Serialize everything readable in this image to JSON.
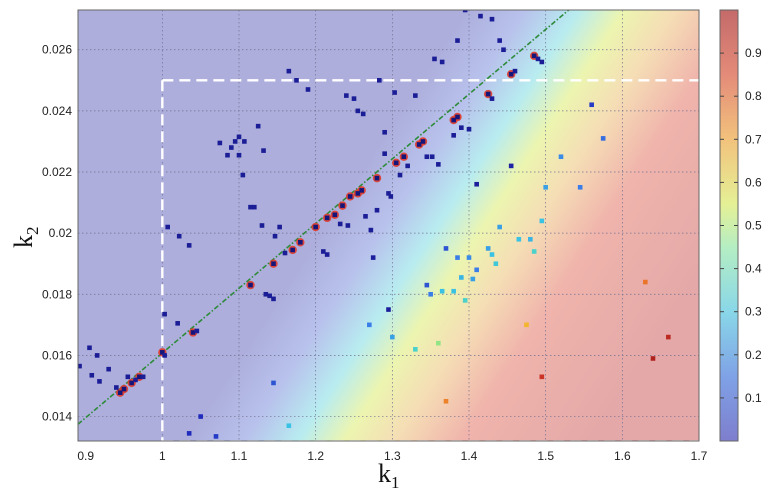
{
  "chart_data": {
    "type": "scatter",
    "title": "",
    "xlabel": "k",
    "xlabel_sub": "1",
    "ylabel": "k",
    "ylabel_sub": "2",
    "xlim": [
      0.89,
      1.7
    ],
    "ylim": [
      0.0132,
      0.0273
    ],
    "xticks": [
      "0.9",
      "1",
      "1.1",
      "1.2",
      "1.3",
      "1.4",
      "1.5",
      "1.6",
      "1.7"
    ],
    "yticks": [
      "0.014",
      "0.016",
      "0.018",
      "0.02",
      "0.022",
      "0.024",
      "0.026"
    ],
    "grid": true,
    "colorbar": {
      "range": [
        0,
        1
      ],
      "ticks": [
        "0.1",
        "0.2",
        "0.3",
        "0.4",
        "0.5",
        "0.6",
        "0.7",
        "0.8",
        "0.9"
      ]
    },
    "reference_lines": {
      "diagonal": {
        "from": [
          0.89,
          0.01375
        ],
        "to": [
          1.53,
          0.0273
        ]
      },
      "vertical_dashed_x": 1.0,
      "horizontal_dashed_y": 0.025
    },
    "on_line_points": [
      [
        0.945,
        0.01478
      ],
      [
        0.95,
        0.0149
      ],
      [
        0.96,
        0.0151
      ],
      [
        0.97,
        0.0153
      ],
      [
        1.0,
        0.0161
      ],
      [
        1.04,
        0.01675
      ],
      [
        1.115,
        0.0183
      ],
      [
        1.145,
        0.019
      ],
      [
        1.17,
        0.01945
      ],
      [
        1.18,
        0.0197
      ],
      [
        1.2,
        0.0202
      ],
      [
        1.215,
        0.0205
      ],
      [
        1.225,
        0.0206
      ],
      [
        1.235,
        0.0209
      ],
      [
        1.245,
        0.0212
      ],
      [
        1.255,
        0.0213
      ],
      [
        1.26,
        0.0214
      ],
      [
        1.28,
        0.0218
      ],
      [
        1.305,
        0.0223
      ],
      [
        1.315,
        0.0225
      ],
      [
        1.335,
        0.0229
      ],
      [
        1.34,
        0.023
      ],
      [
        1.38,
        0.0237
      ],
      [
        1.385,
        0.0238
      ],
      [
        1.425,
        0.02455
      ],
      [
        1.455,
        0.0252
      ],
      [
        1.485,
        0.0258
      ]
    ],
    "points": [
      {
        "x": 0.892,
        "y": 0.01565,
        "v": 0.02
      },
      {
        "x": 0.905,
        "y": 0.01625,
        "v": 0.02
      },
      {
        "x": 0.908,
        "y": 0.01535,
        "v": 0.02
      },
      {
        "x": 0.915,
        "y": 0.016,
        "v": 0.02
      },
      {
        "x": 0.918,
        "y": 0.01515,
        "v": 0.02
      },
      {
        "x": 0.93,
        "y": 0.01555,
        "v": 0.02
      },
      {
        "x": 0.94,
        "y": 0.01495,
        "v": 0.02
      },
      {
        "x": 0.955,
        "y": 0.0153,
        "v": 0.02
      },
      {
        "x": 0.965,
        "y": 0.0152,
        "v": 0.02
      },
      {
        "x": 0.975,
        "y": 0.0153,
        "v": 0.02
      },
      {
        "x": 1.003,
        "y": 0.016,
        "v": 0.02
      },
      {
        "x": 1.003,
        "y": 0.01735,
        "v": 0.02
      },
      {
        "x": 1.007,
        "y": 0.0202,
        "v": 0.02
      },
      {
        "x": 1.02,
        "y": 0.01705,
        "v": 0.02
      },
      {
        "x": 1.022,
        "y": 0.0199,
        "v": 0.02
      },
      {
        "x": 1.035,
        "y": 0.0196,
        "v": 0.02
      },
      {
        "x": 1.045,
        "y": 0.0168,
        "v": 0.02
      },
      {
        "x": 1.075,
        "y": 0.02295,
        "v": 0.02
      },
      {
        "x": 1.085,
        "y": 0.02255,
        "v": 0.02
      },
      {
        "x": 1.09,
        "y": 0.0228,
        "v": 0.02
      },
      {
        "x": 1.095,
        "y": 0.023,
        "v": 0.02
      },
      {
        "x": 1.1,
        "y": 0.02315,
        "v": 0.02
      },
      {
        "x": 1.1,
        "y": 0.02255,
        "v": 0.02
      },
      {
        "x": 1.105,
        "y": 0.0219,
        "v": 0.02
      },
      {
        "x": 1.107,
        "y": 0.023,
        "v": 0.02
      },
      {
        "x": 1.115,
        "y": 0.02085,
        "v": 0.02
      },
      {
        "x": 1.12,
        "y": 0.02085,
        "v": 0.02
      },
      {
        "x": 1.125,
        "y": 0.0235,
        "v": 0.02
      },
      {
        "x": 1.13,
        "y": 0.02025,
        "v": 0.02
      },
      {
        "x": 1.132,
        "y": 0.0227,
        "v": 0.02
      },
      {
        "x": 1.135,
        "y": 0.018,
        "v": 0.02
      },
      {
        "x": 1.14,
        "y": 0.01795,
        "v": 0.02
      },
      {
        "x": 1.145,
        "y": 0.01785,
        "v": 0.02
      },
      {
        "x": 1.147,
        "y": 0.0199,
        "v": 0.02
      },
      {
        "x": 1.153,
        "y": 0.0202,
        "v": 0.02
      },
      {
        "x": 1.16,
        "y": 0.01935,
        "v": 0.02
      },
      {
        "x": 1.165,
        "y": 0.0253,
        "v": 0.02
      },
      {
        "x": 1.175,
        "y": 0.025,
        "v": 0.02
      },
      {
        "x": 1.19,
        "y": 0.0247,
        "v": 0.02
      },
      {
        "x": 1.21,
        "y": 0.0194,
        "v": 0.02
      },
      {
        "x": 1.215,
        "y": 0.0193,
        "v": 0.02
      },
      {
        "x": 1.232,
        "y": 0.0203,
        "v": 0.02
      },
      {
        "x": 1.242,
        "y": 0.02025,
        "v": 0.02
      },
      {
        "x": 1.24,
        "y": 0.0245,
        "v": 0.02
      },
      {
        "x": 1.25,
        "y": 0.0244,
        "v": 0.02
      },
      {
        "x": 1.255,
        "y": 0.024,
        "v": 0.02
      },
      {
        "x": 1.262,
        "y": 0.0239,
        "v": 0.02
      },
      {
        "x": 1.265,
        "y": 0.02055,
        "v": 0.02
      },
      {
        "x": 1.272,
        "y": 0.0201,
        "v": 0.02
      },
      {
        "x": 1.28,
        "y": 0.02075,
        "v": 0.02
      },
      {
        "x": 1.283,
        "y": 0.025,
        "v": 0.02
      },
      {
        "x": 1.29,
        "y": 0.0233,
        "v": 0.02
      },
      {
        "x": 1.29,
        "y": 0.0226,
        "v": 0.02
      },
      {
        "x": 1.295,
        "y": 0.0213,
        "v": 0.02
      },
      {
        "x": 1.298,
        "y": 0.0212,
        "v": 0.02
      },
      {
        "x": 1.303,
        "y": 0.0246,
        "v": 0.02
      },
      {
        "x": 1.31,
        "y": 0.0219,
        "v": 0.02
      },
      {
        "x": 1.32,
        "y": 0.0222,
        "v": 0.02
      },
      {
        "x": 1.33,
        "y": 0.0245,
        "v": 0.02
      },
      {
        "x": 1.345,
        "y": 0.0225,
        "v": 0.02
      },
      {
        "x": 1.352,
        "y": 0.0225,
        "v": 0.02
      },
      {
        "x": 1.355,
        "y": 0.0257,
        "v": 0.02
      },
      {
        "x": 1.36,
        "y": 0.02225,
        "v": 0.02
      },
      {
        "x": 1.365,
        "y": 0.0256,
        "v": 0.02
      },
      {
        "x": 1.38,
        "y": 0.0232,
        "v": 0.02
      },
      {
        "x": 1.385,
        "y": 0.0263,
        "v": 0.02
      },
      {
        "x": 1.39,
        "y": 0.02345,
        "v": 0.02
      },
      {
        "x": 1.395,
        "y": 0.0273,
        "v": 0.02
      },
      {
        "x": 1.4,
        "y": 0.0234,
        "v": 0.02
      },
      {
        "x": 1.415,
        "y": 0.0271,
        "v": 0.02
      },
      {
        "x": 1.43,
        "y": 0.027,
        "v": 0.02
      },
      {
        "x": 1.43,
        "y": 0.0244,
        "v": 0.02
      },
      {
        "x": 1.44,
        "y": 0.0263,
        "v": 0.02
      },
      {
        "x": 1.445,
        "y": 0.026,
        "v": 0.02
      },
      {
        "x": 1.46,
        "y": 0.0253,
        "v": 0.02
      },
      {
        "x": 1.49,
        "y": 0.0257,
        "v": 0.02
      },
      {
        "x": 1.495,
        "y": 0.0256,
        "v": 0.02
      },
      {
        "x": 1.41,
        "y": 0.0216,
        "v": 0.03
      },
      {
        "x": 1.455,
        "y": 0.0222,
        "v": 0.05
      },
      {
        "x": 1.275,
        "y": 0.0192,
        "v": 0.03
      },
      {
        "x": 1.295,
        "y": 0.0175,
        "v": 0.03
      },
      {
        "x": 1.035,
        "y": 0.01345,
        "v": 0.1
      },
      {
        "x": 1.05,
        "y": 0.014,
        "v": 0.1
      },
      {
        "x": 1.07,
        "y": 0.01335,
        "v": 0.12
      },
      {
        "x": 1.145,
        "y": 0.0151,
        "v": 0.15
      },
      {
        "x": 1.165,
        "y": 0.0137,
        "v": 0.3
      },
      {
        "x": 1.27,
        "y": 0.017,
        "v": 0.2
      },
      {
        "x": 1.3,
        "y": 0.0166,
        "v": 0.25
      },
      {
        "x": 1.33,
        "y": 0.0162,
        "v": 0.35
      },
      {
        "x": 1.345,
        "y": 0.0183,
        "v": 0.15
      },
      {
        "x": 1.35,
        "y": 0.018,
        "v": 0.2
      },
      {
        "x": 1.36,
        "y": 0.0164,
        "v": 0.45
      },
      {
        "x": 1.365,
        "y": 0.0181,
        "v": 0.3
      },
      {
        "x": 1.37,
        "y": 0.0195,
        "v": 0.15
      },
      {
        "x": 1.38,
        "y": 0.0181,
        "v": 0.3
      },
      {
        "x": 1.385,
        "y": 0.0192,
        "v": 0.2
      },
      {
        "x": 1.39,
        "y": 0.01855,
        "v": 0.28
      },
      {
        "x": 1.395,
        "y": 0.0178,
        "v": 0.35
      },
      {
        "x": 1.4,
        "y": 0.0192,
        "v": 0.22
      },
      {
        "x": 1.405,
        "y": 0.0185,
        "v": 0.25
      },
      {
        "x": 1.41,
        "y": 0.0188,
        "v": 0.2
      },
      {
        "x": 1.425,
        "y": 0.0195,
        "v": 0.25
      },
      {
        "x": 1.43,
        "y": 0.0193,
        "v": 0.3
      },
      {
        "x": 1.435,
        "y": 0.019,
        "v": 0.32
      },
      {
        "x": 1.44,
        "y": 0.0202,
        "v": 0.25
      },
      {
        "x": 1.465,
        "y": 0.0198,
        "v": 0.3
      },
      {
        "x": 1.48,
        "y": 0.0198,
        "v": 0.28
      },
      {
        "x": 1.485,
        "y": 0.0194,
        "v": 0.35
      },
      {
        "x": 1.495,
        "y": 0.0204,
        "v": 0.3
      },
      {
        "x": 1.5,
        "y": 0.0215,
        "v": 0.25
      },
      {
        "x": 1.52,
        "y": 0.0225,
        "v": 0.22
      },
      {
        "x": 1.545,
        "y": 0.0215,
        "v": 0.2
      },
      {
        "x": 1.56,
        "y": 0.0242,
        "v": 0.12
      },
      {
        "x": 1.575,
        "y": 0.0231,
        "v": 0.18
      },
      {
        "x": 1.37,
        "y": 0.0145,
        "v": 0.75
      },
      {
        "x": 1.475,
        "y": 0.017,
        "v": 0.65
      },
      {
        "x": 1.495,
        "y": 0.0153,
        "v": 0.92
      },
      {
        "x": 1.63,
        "y": 0.0184,
        "v": 0.78
      },
      {
        "x": 1.64,
        "y": 0.0159,
        "v": 0.97
      },
      {
        "x": 1.66,
        "y": 0.0166,
        "v": 0.95
      }
    ]
  }
}
